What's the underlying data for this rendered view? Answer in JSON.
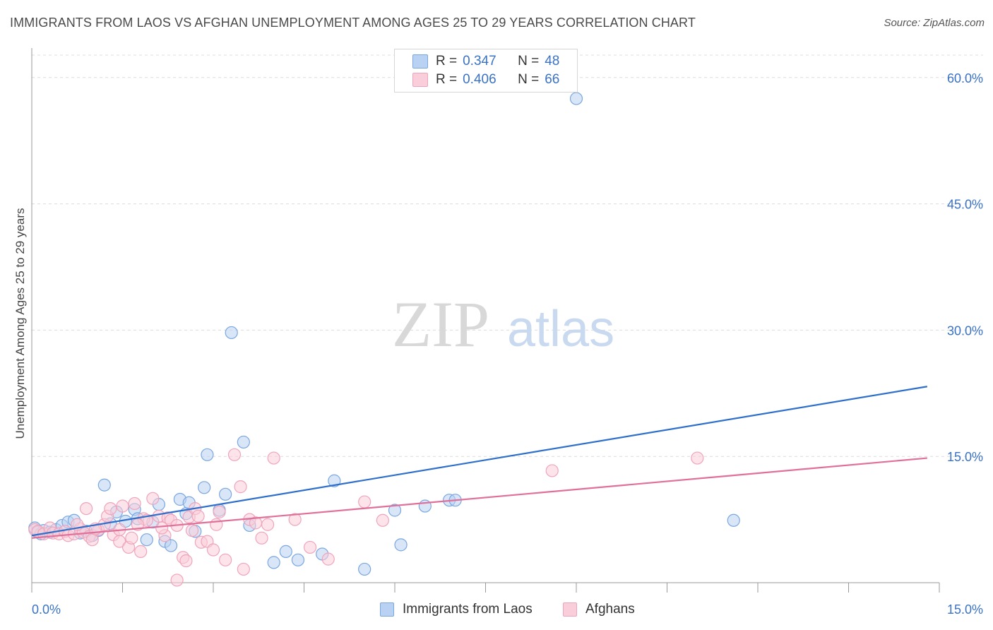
{
  "title": "IMMIGRANTS FROM LAOS VS AFGHAN UNEMPLOYMENT AMONG AGES 25 TO 29 YEARS CORRELATION CHART",
  "source": "Source: ZipAtlas.com",
  "watermark": {
    "zip": "ZIP",
    "atlas": "atlas"
  },
  "legend_stats": [
    {
      "r_label": "R =",
      "r_value": "0.347",
      "n_label": "N =",
      "n_value": "48"
    },
    {
      "r_label": "R =",
      "r_value": "0.406",
      "n_label": "N =",
      "n_value": "66"
    }
  ],
  "chart_data": {
    "type": "scatter",
    "title": "IMMIGRANTS FROM LAOS VS AFGHAN UNEMPLOYMENT AMONG AGES 25 TO 29 YEARS CORRELATION CHART",
    "xlabel": "",
    "ylabel": "Unemployment Among Ages 25 to 29 years",
    "xlim": [
      0,
      15
    ],
    "ylim": [
      0,
      63
    ],
    "x_tick_labels": [
      "0.0%",
      "15.0%"
    ],
    "y_ticks": [
      15,
      30,
      45,
      60
    ],
    "y_tick_labels": [
      "15.0%",
      "30.0%",
      "45.0%",
      "60.0%"
    ],
    "grid": true,
    "legend_position": "top-center",
    "series": [
      {
        "name": "Immigrants from Laos",
        "color": "#7aa7e0",
        "fill": "#b9d1f2",
        "trend": {
          "x": [
            0,
            14.8
          ],
          "y": [
            5.6,
            23.3
          ],
          "color": "#2e6fcc"
        },
        "points": [
          [
            0.05,
            6.5
          ],
          [
            0.1,
            6.0
          ],
          [
            0.15,
            5.8
          ],
          [
            0.2,
            6.2
          ],
          [
            0.3,
            6.0
          ],
          [
            0.4,
            6.3
          ],
          [
            0.5,
            6.8
          ],
          [
            0.6,
            7.2
          ],
          [
            0.7,
            7.4
          ],
          [
            0.8,
            5.9
          ],
          [
            0.9,
            6.1
          ],
          [
            1.0,
            5.6
          ],
          [
            1.1,
            6.2
          ],
          [
            1.2,
            11.6
          ],
          [
            1.3,
            7.0
          ],
          [
            1.4,
            8.4
          ],
          [
            1.55,
            7.3
          ],
          [
            1.7,
            8.7
          ],
          [
            1.75,
            7.6
          ],
          [
            1.9,
            5.1
          ],
          [
            2.0,
            7.2
          ],
          [
            2.1,
            9.3
          ],
          [
            2.2,
            4.9
          ],
          [
            2.3,
            4.4
          ],
          [
            2.45,
            9.9
          ],
          [
            2.55,
            8.2
          ],
          [
            2.6,
            9.5
          ],
          [
            2.7,
            6.1
          ],
          [
            2.85,
            11.3
          ],
          [
            2.9,
            15.2
          ],
          [
            3.1,
            8.6
          ],
          [
            3.2,
            10.5
          ],
          [
            3.3,
            29.7
          ],
          [
            3.5,
            16.7
          ],
          [
            3.6,
            6.8
          ],
          [
            4.0,
            2.4
          ],
          [
            4.2,
            3.7
          ],
          [
            4.4,
            2.7
          ],
          [
            4.8,
            3.4
          ],
          [
            5.0,
            12.1
          ],
          [
            5.5,
            1.6
          ],
          [
            6.0,
            8.6
          ],
          [
            6.1,
            4.5
          ],
          [
            6.5,
            9.1
          ],
          [
            6.9,
            9.8
          ],
          [
            7.0,
            9.8
          ],
          [
            9.0,
            57.5
          ],
          [
            11.6,
            7.4
          ]
        ]
      },
      {
        "name": "Afghans",
        "color": "#f0a4bb",
        "fill": "#f9cdd9",
        "trend": {
          "x": [
            0,
            14.8
          ],
          "y": [
            5.3,
            14.8
          ],
          "color": "#e0709a"
        },
        "points": [
          [
            0.05,
            6.3
          ],
          [
            0.1,
            6.1
          ],
          [
            0.2,
            5.8
          ],
          [
            0.3,
            6.5
          ],
          [
            0.35,
            5.9
          ],
          [
            0.45,
            5.8
          ],
          [
            0.55,
            6.1
          ],
          [
            0.6,
            5.6
          ],
          [
            0.7,
            5.8
          ],
          [
            0.8,
            6.4
          ],
          [
            0.85,
            6.0
          ],
          [
            0.9,
            8.8
          ],
          [
            0.95,
            5.5
          ],
          [
            1.0,
            5.1
          ],
          [
            1.1,
            6.3
          ],
          [
            1.2,
            6.9
          ],
          [
            1.25,
            7.9
          ],
          [
            1.3,
            8.8
          ],
          [
            1.35,
            5.7
          ],
          [
            1.45,
            4.9
          ],
          [
            1.5,
            9.1
          ],
          [
            1.6,
            4.2
          ],
          [
            1.65,
            5.3
          ],
          [
            1.7,
            9.4
          ],
          [
            1.8,
            3.7
          ],
          [
            1.85,
            7.6
          ],
          [
            1.9,
            7.4
          ],
          [
            2.0,
            10.0
          ],
          [
            2.1,
            7.9
          ],
          [
            2.2,
            5.6
          ],
          [
            2.25,
            7.7
          ],
          [
            2.3,
            7.4
          ],
          [
            2.4,
            6.8
          ],
          [
            2.5,
            3.0
          ],
          [
            2.55,
            2.6
          ],
          [
            2.6,
            7.8
          ],
          [
            2.7,
            8.8
          ],
          [
            2.75,
            7.9
          ],
          [
            2.8,
            4.8
          ],
          [
            2.9,
            4.9
          ],
          [
            3.0,
            3.9
          ],
          [
            3.1,
            8.4
          ],
          [
            3.2,
            2.7
          ],
          [
            3.35,
            15.2
          ],
          [
            3.45,
            11.4
          ],
          [
            3.5,
            1.6
          ],
          [
            3.6,
            7.5
          ],
          [
            3.7,
            7.1
          ],
          [
            3.8,
            5.3
          ],
          [
            3.9,
            6.9
          ],
          [
            4.0,
            14.8
          ],
          [
            4.35,
            7.5
          ],
          [
            4.6,
            4.2
          ],
          [
            4.9,
            2.8
          ],
          [
            5.5,
            9.6
          ],
          [
            5.8,
            7.4
          ],
          [
            2.4,
            0.3
          ],
          [
            1.75,
            6.9
          ],
          [
            2.15,
            6.5
          ],
          [
            3.05,
            6.9
          ],
          [
            1.45,
            6.3
          ],
          [
            2.65,
            6.2
          ],
          [
            0.75,
            6.9
          ],
          [
            1.05,
            6.4
          ],
          [
            8.6,
            13.3
          ],
          [
            11.0,
            14.8
          ]
        ]
      }
    ]
  }
}
